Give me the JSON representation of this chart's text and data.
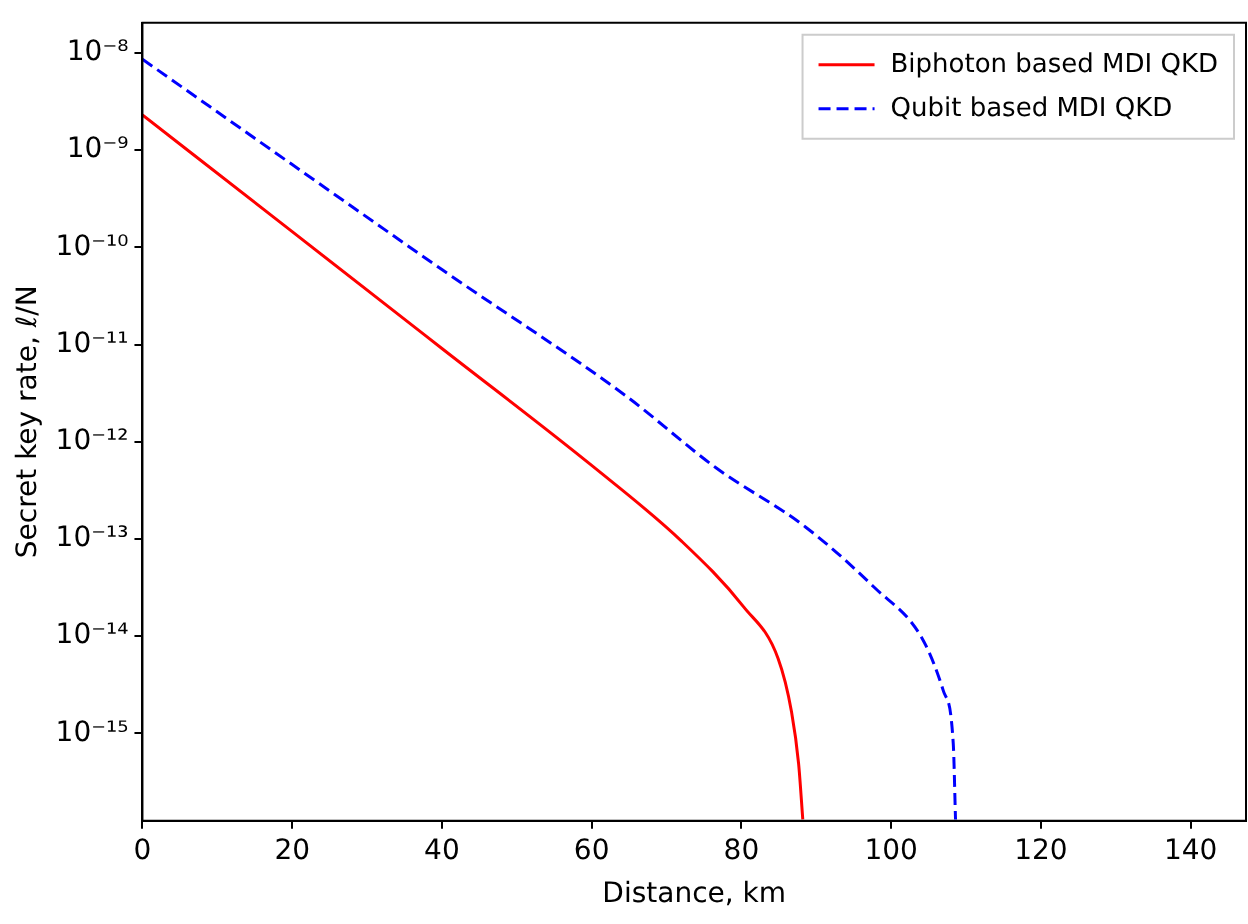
{
  "chart_data": {
    "type": "line",
    "xlabel": "Distance, km",
    "ylabel": "Secret key rate, ℓ/N",
    "log": "y",
    "grid": false,
    "legend": "top right",
    "marker": "none",
    "xlim": [
      0,
      147.4
    ],
    "xticks": [
      0,
      20,
      40,
      60,
      80,
      100,
      120,
      140
    ],
    "ylim": [
      1.26e-16,
      2.04e-08
    ],
    "yticks": [
      {
        "value": 1e-15,
        "label": "10⁻¹⁵"
      },
      {
        "value": 1e-14,
        "label": "10⁻¹⁴"
      },
      {
        "value": 1e-13,
        "label": "10⁻¹³"
      },
      {
        "value": 1e-12,
        "label": "10⁻¹²"
      },
      {
        "value": 1e-11,
        "label": "10⁻¹¹"
      },
      {
        "value": 1e-10,
        "label": "10⁻¹⁰"
      },
      {
        "value": 1e-09,
        "label": "10⁻⁹"
      },
      {
        "value": 1e-08,
        "label": "10⁻⁸"
      }
    ],
    "series": [
      {
        "name": "Biphoton based MDI QKD",
        "color": "#ff0000",
        "line_style": "solid",
        "x": [
          0,
          20,
          40,
          60,
          72,
          80.3,
          84.9,
          86.7,
          87.65,
          88.2
        ],
        "values": [
          2.3e-09,
          1.45e-10,
          9.1e-12,
          5.7e-13,
          9.5e-14,
          2e-14,
          5.9e-15,
          1.66e-15,
          4.8e-16,
          1.3e-16
        ]
      },
      {
        "name": "Qubit based MDI QKD",
        "color": "#0000ff",
        "line_style": "dashed",
        "x": [
          0,
          20,
          40,
          64.6,
          76.6,
          88.6,
          97.7,
          104.2,
          107,
          108.3,
          108.6
        ],
        "values": [
          8.6e-09,
          7.1e-10,
          5.9e-11,
          2.95e-12,
          5.4e-13,
          1.32e-13,
          3.2e-14,
          9.3e-15,
          2.7e-15,
          7.8e-16,
          1.3e-16
        ]
      }
    ]
  }
}
